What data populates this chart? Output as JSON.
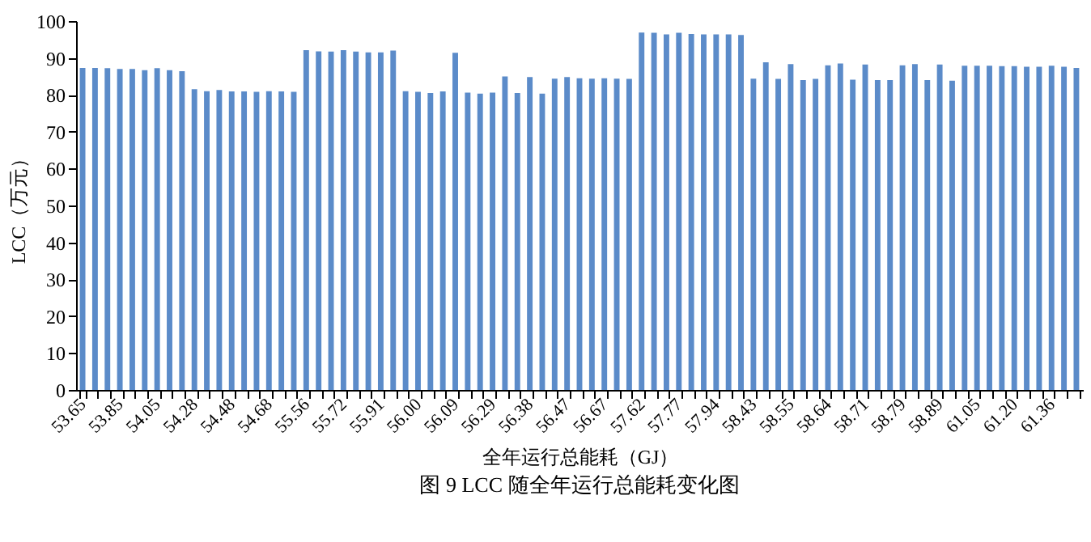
{
  "chart_data": {
    "type": "bar",
    "title": "图 9 LCC 随全年运行总能耗变化图",
    "xlabel": "全年运行总能耗（GJ）",
    "ylabel": "LCC（万元）",
    "categories": [
      "53.65",
      null,
      null,
      "53.85",
      null,
      null,
      "54.05",
      null,
      null,
      "54.28",
      null,
      null,
      "54.48",
      null,
      null,
      "54.68",
      null,
      null,
      "55.56",
      null,
      null,
      "55.72",
      null,
      null,
      "55.91",
      null,
      null,
      "56.00",
      null,
      null,
      "56.09",
      null,
      null,
      "56.29",
      null,
      null,
      "56.38",
      null,
      null,
      "56.47",
      null,
      null,
      "56.67",
      null,
      null,
      "57.62",
      null,
      null,
      "57.77",
      null,
      null,
      "57.94",
      null,
      null,
      "58.43",
      null,
      null,
      "58.55",
      null,
      null,
      "58.64",
      null,
      null,
      "58.71",
      null,
      null,
      "58.79",
      null,
      null,
      "58.89",
      null,
      null,
      "61.05",
      null,
      null,
      "61.20",
      null,
      null,
      "61.36",
      null,
      null
    ],
    "values": [
      87.3,
      87.3,
      87.2,
      87.0,
      87.0,
      86.7,
      87.2,
      86.7,
      86.4,
      81.5,
      81.0,
      81.3,
      80.9,
      80.9,
      80.8,
      81.0,
      80.9,
      80.8,
      92.1,
      91.8,
      91.7,
      92.1,
      91.7,
      91.5,
      91.5,
      92.0,
      81.0,
      80.8,
      80.5,
      80.9,
      91.4,
      80.6,
      80.3,
      80.6,
      85.0,
      80.5,
      84.8,
      80.3,
      84.4,
      84.8,
      84.5,
      84.4,
      84.5,
      84.4,
      84.3,
      96.9,
      96.8,
      96.4,
      96.8,
      96.5,
      96.4,
      96.4,
      96.4,
      96.2,
      84.4,
      88.8,
      84.3,
      88.3,
      84.0,
      84.3,
      88.0,
      88.5,
      84.1,
      88.2,
      84.0,
      84.0,
      88.0,
      88.3,
      84.0,
      88.2,
      83.8,
      87.9,
      87.9,
      87.9,
      87.8,
      87.8,
      87.6,
      87.6,
      87.9,
      87.6,
      87.3
    ],
    "color": "#5b8bc9",
    "ylim": [
      0,
      100
    ],
    "yticks": [
      0,
      10,
      20,
      30,
      40,
      50,
      60,
      70,
      80,
      90,
      100
    ],
    "grid": false
  }
}
